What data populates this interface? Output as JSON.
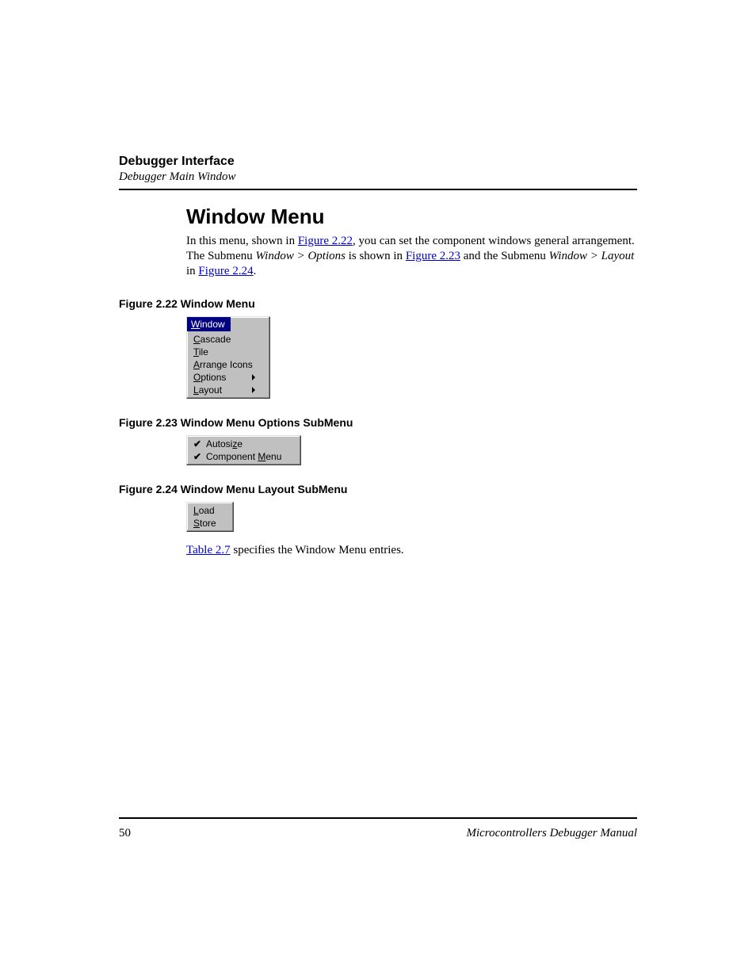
{
  "header": {
    "title": "Debugger Interface",
    "subtitle": "Debugger Main Window"
  },
  "section": {
    "title": "Window Menu"
  },
  "paragraph": {
    "p1a": "In this menu, shown in ",
    "link1": "Figure 2.22",
    "p1b": ", you can set the component windows general arrangement. The Submenu ",
    "italic1": "Window > Options",
    "p1c": " is shown in ",
    "link2": "Figure 2.23",
    "p1d": " and the Submenu ",
    "italic2": "Window > Layout",
    "p1e": " in ",
    "link3": "Figure 2.24",
    "p1f": "."
  },
  "figures": {
    "f222": {
      "caption": "Figure 2.22  Window Menu"
    },
    "f223": {
      "caption": "Figure 2.23  Window Menu Options SubMenu"
    },
    "f224": {
      "caption": "Figure 2.24  Window Menu Layout SubMenu"
    }
  },
  "menu222": {
    "title_pre": "W",
    "title_hot": "",
    "title_post": "indow",
    "title_html": "Window",
    "items": [
      {
        "pre": "",
        "hot": "C",
        "post": "ascade",
        "submenu": false
      },
      {
        "pre": "",
        "hot": "T",
        "post": "ile",
        "submenu": false
      },
      {
        "pre": "",
        "hot": "A",
        "post": "rrange Icons",
        "submenu": false
      },
      {
        "pre": "",
        "hot": "O",
        "post": "ptions",
        "submenu": true
      },
      {
        "pre": "",
        "hot": "L",
        "post": "ayout",
        "submenu": true
      }
    ]
  },
  "menu223": {
    "items": [
      {
        "checked": true,
        "pre": "Autosi",
        "hot": "z",
        "post": "e"
      },
      {
        "checked": true,
        "pre": "Component ",
        "hot": "M",
        "post": "enu"
      }
    ]
  },
  "menu224": {
    "items": [
      {
        "pre": "",
        "hot": "L",
        "post": "oad"
      },
      {
        "pre": "",
        "hot": "S",
        "post": "tore"
      }
    ]
  },
  "closing": {
    "link": "Table 2.7",
    "text_after": " specifies the Window Menu entries."
  },
  "footer": {
    "page": "50",
    "manual": "Microcontrollers Debugger Manual"
  },
  "colors": {
    "link": "#0000cc",
    "menubar_bg": "#000080",
    "face": "#c0c0c0",
    "black": "#000000",
    "white": "#ffffff"
  }
}
